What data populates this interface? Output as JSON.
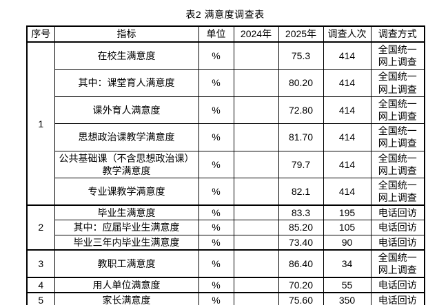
{
  "title": "表2 满意度调查表",
  "table": {
    "headers": [
      "序号",
      "指标",
      "单位",
      "2024年",
      "2025年",
      "调查人次",
      "调查方式"
    ],
    "rows": [
      {
        "seq": "1",
        "seq_span": 6,
        "indicator": "在校生满意度",
        "unit": "%",
        "y2024": "",
        "y2025": "75.3",
        "count": "414",
        "method": "全国统一\n网上调查"
      },
      {
        "indicator": "其中：课堂育人满意度",
        "unit": "%",
        "y2024": "",
        "y2025": "80.20",
        "count": "414",
        "method": "全国统一\n网上调查"
      },
      {
        "indicator": "课外育人满意度",
        "unit": "%",
        "y2024": "",
        "y2025": "72.80",
        "count": "414",
        "method": "全国统一\n网上调查"
      },
      {
        "indicator": "思想政治课教学满意度",
        "unit": "%",
        "y2024": "",
        "y2025": "81.70",
        "count": "414",
        "method": "全国统一\n网上调查"
      },
      {
        "indicator": "公共基础课（不含思想政治课）\n教学满意度",
        "unit": "%",
        "y2024": "",
        "y2025": "79.7",
        "count": "414",
        "method": "全国统一\n网上调查"
      },
      {
        "indicator": "专业课教学满意度",
        "unit": "%",
        "y2024": "",
        "y2025": "82.1",
        "count": "414",
        "method": "全国统一\n网上调查"
      },
      {
        "seq": "2",
        "seq_span": 3,
        "indicator": "毕业生满意度",
        "unit": "%",
        "y2024": "",
        "y2025": "83.3",
        "count": "195",
        "method": "电话回访"
      },
      {
        "indicator": "其中：应届毕业生满意度",
        "unit": "%",
        "y2024": "",
        "y2025": "85.20",
        "count": "105",
        "method": "电话回访"
      },
      {
        "indicator": "毕业三年内毕业生满意度",
        "unit": "%",
        "y2024": "",
        "y2025": "73.40",
        "count": "90",
        "method": "电话回访"
      },
      {
        "seq": "3",
        "seq_span": 1,
        "indicator": "教职工满意度",
        "unit": "%",
        "y2024": "",
        "y2025": "86.40",
        "count": "34",
        "method": "全国统一\n网上调查"
      },
      {
        "seq": "4",
        "seq_span": 1,
        "indicator": "用人单位满意度",
        "unit": "%",
        "y2024": "",
        "y2025": "70.20",
        "count": "55",
        "method": "电话回访"
      },
      {
        "seq": "5",
        "seq_span": 1,
        "indicator": "家长满意度",
        "unit": "%",
        "y2024": "",
        "y2025": "75.60",
        "count": "350",
        "method": "电话回访"
      }
    ]
  }
}
